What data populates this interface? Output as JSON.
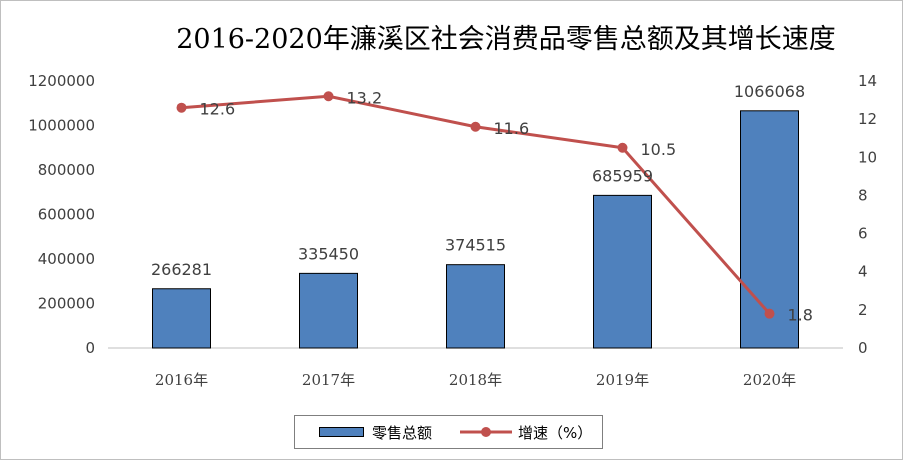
{
  "title": "2016-2020年濂溪区社会消费品零售总额及其增长速度",
  "chart_data": {
    "type": "bar",
    "categories": [
      "2016年",
      "2017年",
      "2018年",
      "2019年",
      "2020年"
    ],
    "series": [
      {
        "name": "零售总额",
        "type": "bar",
        "axis": "left",
        "color": "#4f81bd",
        "values": [
          266281,
          335450,
          374515,
          685959,
          1066068
        ]
      },
      {
        "name": "增速（%）",
        "type": "line",
        "axis": "right",
        "color": "#c0504d",
        "values": [
          12.6,
          13.2,
          11.6,
          10.5,
          1.8
        ]
      }
    ],
    "y_left": {
      "ylim": [
        0,
        1200000
      ],
      "ticks": [
        "0",
        "200000",
        "400000",
        "600000",
        "800000",
        "1000000",
        "1200000"
      ]
    },
    "y_right": {
      "ylim": [
        0,
        14
      ],
      "ticks": [
        "0",
        "2",
        "4",
        "6",
        "8",
        "10",
        "12",
        "14"
      ]
    },
    "xlabel": "",
    "ylabel": "",
    "grid": false,
    "legend": "bottom-center"
  }
}
